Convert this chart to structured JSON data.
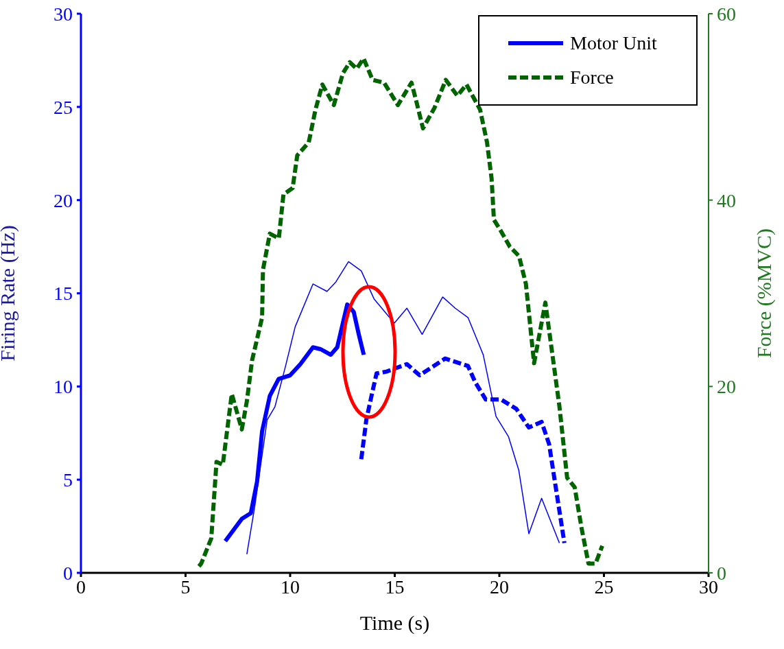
{
  "chart_data": {
    "type": "line",
    "xlabel": "Time (s)",
    "ylabel": "Firing Rate (Hz)",
    "y2label": "Force (%MVC)",
    "xlim": [
      0,
      30
    ],
    "xticks": [
      0,
      5,
      10,
      15,
      20,
      25,
      30
    ],
    "ylim": [
      0,
      30
    ],
    "yticks": [
      0,
      5,
      10,
      15,
      20,
      25,
      30
    ],
    "y2lim": [
      0,
      60
    ],
    "y2ticks": [
      0,
      20,
      40,
      60
    ],
    "legend": "top right",
    "marker": "none",
    "grid": false,
    "series": [
      {
        "name": "Motor Unit",
        "color": "#0000ff",
        "line_style": "solid",
        "x": [
          6.9,
          7.69,
          8.12,
          8.42,
          8.66,
          9.03,
          9.45,
          10.0,
          10.49,
          11.09,
          11.46,
          11.94,
          12.25,
          12.73,
          13.04,
          13.28,
          13.52
        ],
        "values": [
          1.7,
          2.9,
          3.2,
          4.9,
          7.6,
          9.5,
          10.4,
          10.6,
          11.2,
          12.1,
          12.0,
          11.7,
          12.1,
          14.4,
          14.0,
          12.8,
          11.7
        ]
      },
      {
        "color": "#0000ff",
        "line_style": "dashed",
        "x": [
          13.4,
          13.64,
          13.89,
          14.13,
          14.61,
          15.58,
          16.19,
          17.41,
          18.5,
          18.86,
          19.35,
          20.08,
          20.81,
          21.41,
          22.02,
          22.38,
          22.75,
          23.11
        ],
        "values": [
          6.1,
          8.2,
          9.5,
          10.7,
          10.8,
          11.2,
          10.6,
          11.5,
          11.1,
          10.2,
          9.3,
          9.3,
          8.8,
          7.8,
          8.1,
          6.9,
          4.2,
          1.6
        ]
      },
      {
        "color": "#0000ff",
        "line_style": "solid",
        "x": [
          7.93,
          8.3,
          8.9,
          9.27,
          9.76,
          10.24,
          11.09,
          11.76,
          12.18,
          12.79,
          13.4,
          14.01,
          14.98,
          15.58,
          16.31,
          17.29,
          17.89,
          18.5,
          19.23,
          19.84,
          20.44,
          20.93,
          21.41,
          22.02,
          22.87
        ],
        "values": [
          1.0,
          3.5,
          8.2,
          8.9,
          11.0,
          13.2,
          15.5,
          15.1,
          15.6,
          16.7,
          16.2,
          14.7,
          13.4,
          14.2,
          12.8,
          14.8,
          14.2,
          13.7,
          11.7,
          8.4,
          7.3,
          5.5,
          2.1,
          4.0,
          1.6
        ]
      },
      {
        "name": "Force",
        "color": "#006400",
        "line_style": "dashed",
        "axis": "y2",
        "x": [
          5.64,
          5.75,
          6.23,
          6.48,
          6.78,
          7.21,
          7.69,
          7.93,
          8.18,
          8.66,
          8.7,
          9.03,
          9.46,
          9.68,
          10.12,
          10.34,
          10.89,
          11.21,
          11.54,
          12.09,
          12.52,
          12.85,
          13.18,
          13.51,
          13.94,
          14.49,
          15.15,
          15.8,
          16.02,
          16.35,
          16.9,
          17.44,
          17.99,
          18.43,
          19.08,
          19.41,
          19.63,
          19.74,
          20.07,
          20.5,
          20.94,
          21.27,
          21.66,
          22.2,
          22.38,
          22.87,
          23.24,
          23.6,
          23.93,
          24.26,
          24.6,
          24.92
        ],
        "values": [
          0.7,
          1.0,
          3.7,
          11.9,
          11.6,
          19.2,
          15.4,
          18.4,
          22.8,
          27.4,
          32.5,
          36.4,
          35.9,
          40.6,
          41.3,
          44.8,
          46.2,
          49.7,
          52.4,
          50.2,
          53.6,
          54.8,
          54.1,
          55.2,
          52.9,
          52.6,
          50.2,
          52.6,
          50.7,
          47.7,
          49.9,
          52.9,
          51.2,
          52.4,
          49.7,
          46.2,
          42.3,
          37.9,
          36.7,
          35.0,
          34.0,
          31.0,
          22.5,
          29.0,
          26.0,
          17.9,
          10.2,
          9.2,
          4.8,
          1.0,
          1.0,
          2.9
        ]
      }
    ]
  }
}
